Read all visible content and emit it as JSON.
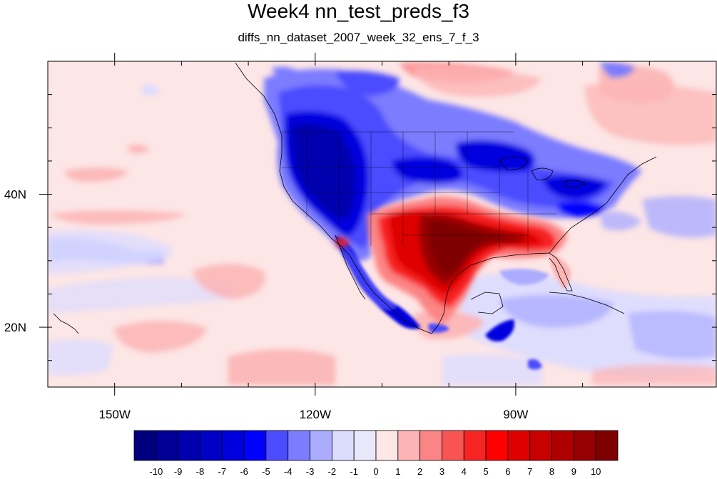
{
  "title": "Week4 nn_test_preds_f3",
  "subtitle": "diffs_nn_dataset_2007_week_32_ens_7_f_3",
  "map": {
    "projection": "lat-lon",
    "lon_range": [
      -160,
      -60
    ],
    "lat_range": [
      11,
      60
    ],
    "ocean_background": "#fde6e6",
    "x_ticks": [
      {
        "lon": -150,
        "label": "150W"
      },
      {
        "lon": -120,
        "label": "120W"
      },
      {
        "lon": -90,
        "label": "90W"
      }
    ],
    "y_ticks": [
      {
        "lat": 20,
        "label": "20N"
      },
      {
        "lat": 40,
        "label": "40N"
      }
    ]
  },
  "colorbar": {
    "levels": [
      "-10",
      "-9",
      "-8",
      "-7",
      "-6",
      "-5",
      "-4",
      "-3",
      "-2",
      "-1",
      "0",
      "1",
      "2",
      "3",
      "4",
      "5",
      "6",
      "7",
      "8",
      "9",
      "10"
    ],
    "colors": [
      "#00007f",
      "#000097",
      "#0000af",
      "#0000c7",
      "#0000df",
      "#0000ff",
      "#4c4cff",
      "#7c7cff",
      "#acacff",
      "#dcdcff",
      "#e8e8fa",
      "#fde6e6",
      "#fcb4b4",
      "#fb8484",
      "#f95454",
      "#f72424",
      "#ff0000",
      "#df0000",
      "#c70000",
      "#af0000",
      "#970000",
      "#7f0000"
    ]
  }
}
